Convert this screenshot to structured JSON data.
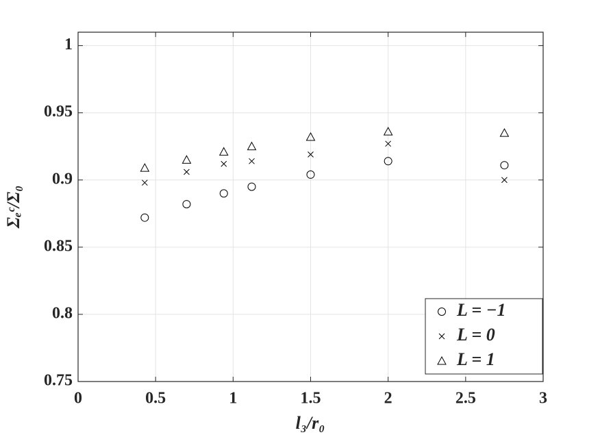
{
  "chart_data": {
    "type": "scatter",
    "x_label": "l₃/r₀",
    "y_label": "Σₑᶜ/Σ₀",
    "x": [
      0.43,
      0.7,
      0.94,
      1.12,
      1.5,
      2.0,
      2.75
    ],
    "series": [
      {
        "name": "L = −1",
        "color": "#000000",
        "marker": "circle",
        "values": [
          0.872,
          0.882,
          0.89,
          0.895,
          0.904,
          0.914,
          0.911
        ]
      },
      {
        "name": "L = 0",
        "color": "#000000",
        "marker": "x",
        "values": [
          0.898,
          0.906,
          0.912,
          0.914,
          0.919,
          0.927,
          0.9
        ]
      },
      {
        "name": "L = 1",
        "color": "#000000",
        "marker": "triangle",
        "values": [
          0.909,
          0.915,
          0.921,
          0.925,
          0.932,
          0.936,
          0.935
        ]
      }
    ],
    "xlim": [
      0,
      3
    ],
    "xticks": [
      0,
      0.5,
      1,
      1.5,
      2,
      2.5,
      3
    ],
    "ylim": [
      0.75,
      1.01
    ],
    "yticks": [
      0.75,
      0.8,
      0.85,
      0.9,
      0.95,
      1
    ],
    "grid": true,
    "legend": "lower-right"
  }
}
